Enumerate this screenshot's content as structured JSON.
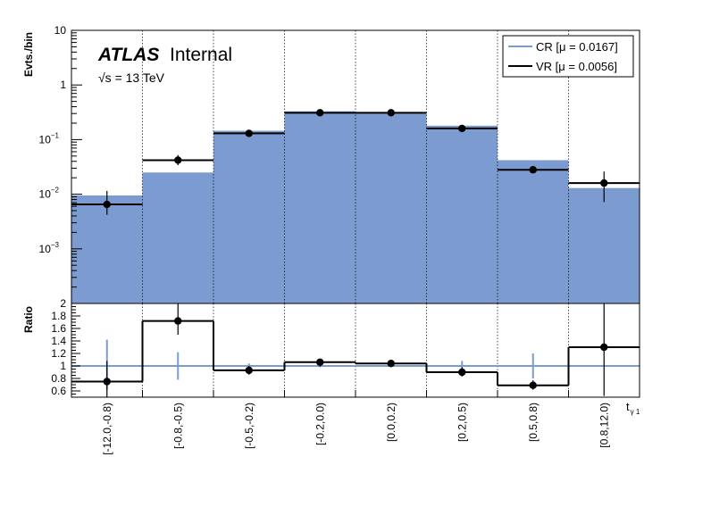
{
  "chart_data": {
    "type": "bar",
    "title": "",
    "atlas_bold": "ATLAS",
    "atlas_label": "Internal",
    "energy_label": "√s = 13 TeV",
    "categories": [
      "[-12.0,-0.8)",
      "[-0.8,-0.5)",
      "[-0.5,-0.2)",
      "[-0.2,0.0)",
      "[0.0,0.2)",
      "[0.2,0.5)",
      "[0.5,0.8)",
      "[0.8,12.0)"
    ],
    "xlabel": "t",
    "xlabel_sub": "γ 1",
    "top_panel": {
      "ylabel": "Evts./bin",
      "yscale": "log",
      "ylim": [
        0.0001,
        10
      ],
      "ytick_labels": [
        {
          "value": 10,
          "base": "10",
          "exp": ""
        },
        {
          "value": 1,
          "base": "1",
          "exp": ""
        },
        {
          "value": 0.1,
          "base": "10",
          "exp": "−1"
        },
        {
          "value": 0.01,
          "base": "10",
          "exp": "−2"
        },
        {
          "value": 0.001,
          "base": "10",
          "exp": "−3"
        }
      ],
      "series": [
        {
          "name": "CR [μ = 0.0167]",
          "style": "filled-histogram",
          "color": "#7b9bd1",
          "values": [
            0.0095,
            0.025,
            0.145,
            0.33,
            0.32,
            0.18,
            0.042,
            0.013
          ]
        },
        {
          "name": "VR [μ = 0.0056]",
          "style": "step-with-points",
          "color": "#000000",
          "values": [
            0.0065,
            0.042,
            0.13,
            0.31,
            0.31,
            0.16,
            0.028,
            0.016
          ],
          "err_low": [
            0.0042,
            0.034,
            0.12,
            0.295,
            0.295,
            0.148,
            0.025,
            0.0072
          ],
          "err_high": [
            0.0115,
            0.052,
            0.14,
            0.325,
            0.325,
            0.172,
            0.032,
            0.026
          ]
        }
      ],
      "legend_position": "top-right"
    },
    "bottom_panel": {
      "ylabel": "Ratio",
      "ylim": [
        0.5,
        2.0
      ],
      "ytick_labels": [
        "0.6",
        "0.8",
        "1",
        "1.2",
        "1.4",
        "1.6",
        "1.8",
        "2"
      ],
      "reference_line": 1,
      "ratio_values": [
        0.75,
        1.72,
        0.93,
        1.06,
        1.04,
        0.9,
        0.69,
        1.3
      ],
      "ratio_err_low": [
        0.5,
        1.5,
        0.86,
        0.99,
        0.98,
        0.83,
        0.62,
        0.52
      ],
      "ratio_err_high": [
        1.08,
        2.0,
        1.0,
        1.1,
        1.1,
        0.98,
        0.77,
        2.0
      ],
      "cr_err_low": [
        0.62,
        0.78,
        0.96,
        0.98,
        0.98,
        0.92,
        0.8,
        1.0
      ],
      "cr_err_high": [
        1.42,
        1.22,
        1.04,
        1.02,
        1.02,
        1.08,
        1.2,
        1.0
      ]
    },
    "grid": "vertical-dotted"
  }
}
